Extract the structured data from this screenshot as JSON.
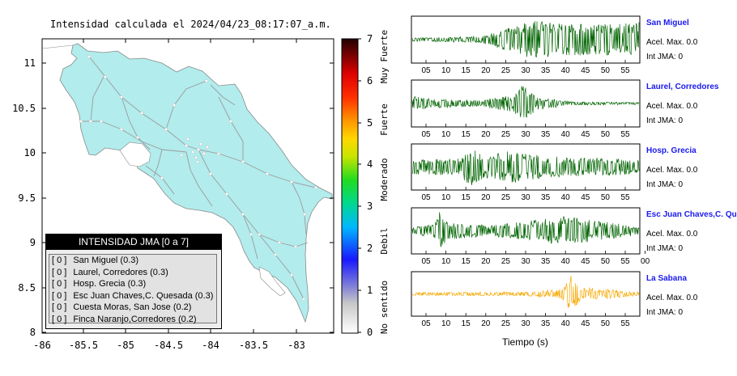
{
  "map": {
    "title": "Intensidad calculada el 2024/04/23_08:17:07_a.m.",
    "lon_ticks": [
      "-86",
      "-85.5",
      "-85",
      "-84.5",
      "-84",
      "-83.5",
      "-83"
    ],
    "lat_ticks": [
      "11",
      "10.5",
      "10",
      "9.5",
      "9",
      "8.5",
      "8"
    ],
    "land_color": "#b2ecec",
    "road_color": "#9b9b9b"
  },
  "legend": {
    "title": "INTENSIDAD JMA [0 a 7]",
    "items": [
      {
        "code": "[ 0 ]",
        "label": "San Miguel (0.3)"
      },
      {
        "code": "[ 0 ]",
        "label": "Laurel, Corredores (0.3)"
      },
      {
        "code": "[ 0 ]",
        "label": "Hosp. Grecia (0.3)"
      },
      {
        "code": "[ 0 ]",
        "label": "Esc Juan Chaves,C. Quesada (0.3)"
      },
      {
        "code": "[ 0 ]",
        "label": "Cuesta Moras, San Jose (0.2)"
      },
      {
        "code": "[ 0 ]",
        "label": "Finca Naranjo,Corredores (0.2)"
      }
    ]
  },
  "colorbar": {
    "ticks": [
      "0",
      "1",
      "2",
      "3",
      "4",
      "5",
      "6",
      "7"
    ],
    "labels": [
      "No sentido",
      "Debil",
      "Moderado",
      "Fuerte",
      "Muy Fuerte"
    ]
  },
  "stations": [
    {
      "name": "San Miguel",
      "acc": "Acel. Max. 0.0",
      "jma": "Int JMA: 0",
      "color": "#006400",
      "ticks": [
        "05",
        "10",
        "15",
        "20",
        "25",
        "30",
        "35",
        "40",
        "45",
        "50",
        "55"
      ]
    },
    {
      "name": "Laurel, Corredores",
      "acc": "Acel. Max. 0.0",
      "jma": "Int JMA: 0",
      "color": "#006400",
      "ticks": [
        "05",
        "10",
        "15",
        "20",
        "25",
        "30",
        "35",
        "40",
        "45",
        "50",
        "55"
      ]
    },
    {
      "name": "Hosp. Grecia",
      "acc": "Acel. Max. 0.0",
      "jma": "Int JMA: 0",
      "color": "#006400",
      "ticks": [
        "05",
        "10",
        "15",
        "20",
        "25",
        "30",
        "35",
        "40",
        "45",
        "50",
        "55"
      ]
    },
    {
      "name": "Esc Juan Chaves,C. Qu",
      "acc": "Acel. Max. 0.0",
      "jma": "Int JMA: 0",
      "color": "#006400",
      "ticks": [
        "05",
        "10",
        "15",
        "20",
        "25",
        "30",
        "35",
        "40",
        "45",
        "50",
        "55",
        "00"
      ]
    },
    {
      "name": "La Sabana",
      "acc": "Acel. Max. 0.0",
      "jma": "Int JMA: 0",
      "color": "#f5a800",
      "ticks": [
        "05",
        "10",
        "15",
        "20",
        "25",
        "30",
        "35",
        "40",
        "45",
        "50",
        "55"
      ]
    }
  ],
  "x_axis_label": "Tiempo (s)"
}
